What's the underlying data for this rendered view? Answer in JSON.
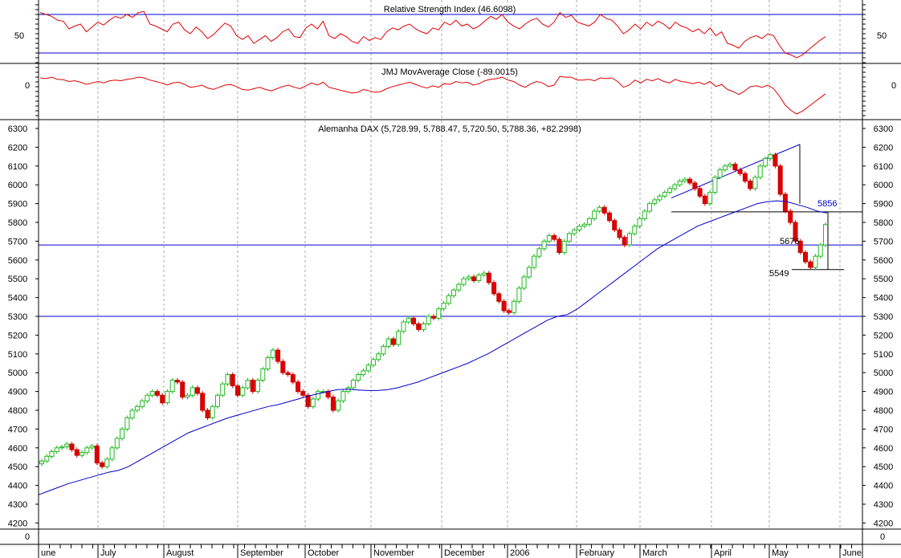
{
  "chart_data": [
    {
      "type": "line",
      "title": "Relative Strength Index (46.6098)",
      "y_ticks": [
        50
      ],
      "levels": [
        30,
        70
      ],
      "series": [
        {
          "color": "#e00000",
          "values": [
            72,
            70,
            68,
            64,
            63,
            55,
            58,
            60,
            52,
            57,
            62,
            59,
            64,
            68,
            66,
            70,
            67,
            72,
            73,
            60,
            58,
            55,
            52,
            60,
            62,
            54,
            50,
            57,
            52,
            45,
            49,
            55,
            61,
            58,
            48,
            44,
            48,
            40,
            44,
            48,
            42,
            46,
            52,
            55,
            47,
            46,
            56,
            60,
            55,
            63,
            48,
            45,
            50,
            47,
            42,
            40,
            47,
            43,
            46,
            44,
            52,
            56,
            54,
            58,
            60,
            55,
            52,
            50,
            56,
            54,
            62,
            59,
            64,
            58,
            60,
            55,
            58,
            63,
            68,
            65,
            70,
            62,
            58,
            55,
            60,
            64,
            66,
            60,
            57,
            62,
            72,
            67,
            69,
            62,
            60,
            58,
            62,
            70,
            66,
            64,
            58,
            50,
            54,
            60,
            55,
            62,
            58,
            63,
            60,
            55,
            62,
            58,
            56,
            52,
            55,
            50,
            56,
            48,
            52,
            40,
            38,
            35,
            42,
            46,
            48,
            45,
            50,
            48,
            38,
            30,
            28,
            25,
            28,
            33,
            38,
            43,
            47
          ]
        }
      ]
    },
    {
      "type": "line",
      "title": "JMJ MovAverage Close (-89.0015)",
      "y_ticks": [
        0
      ],
      "series": [
        {
          "color": "#e00000",
          "values": [
            20,
            18,
            22,
            16,
            15,
            10,
            12,
            8,
            2,
            6,
            10,
            6,
            12,
            14,
            12,
            16,
            18,
            22,
            20,
            14,
            10,
            6,
            0,
            6,
            8,
            2,
            -6,
            -4,
            0,
            -8,
            -12,
            -6,
            0,
            2,
            -4,
            -12,
            -14,
            -10,
            -6,
            -12,
            -16,
            -10,
            -4,
            0,
            -6,
            -10,
            -2,
            6,
            0,
            8,
            -6,
            -10,
            -14,
            -18,
            -22,
            -20,
            -12,
            -16,
            -20,
            -18,
            -10,
            -4,
            0,
            4,
            8,
            2,
            -4,
            -8,
            -2,
            -6,
            4,
            2,
            10,
            6,
            8,
            0,
            4,
            12,
            16,
            18,
            22,
            14,
            10,
            0,
            -6,
            4,
            10,
            6,
            -4,
            0,
            24,
            22,
            22,
            14,
            14,
            16,
            12,
            20,
            18,
            20,
            10,
            -6,
            0,
            14,
            6,
            16,
            12,
            18,
            10,
            6,
            16,
            10,
            8,
            4,
            8,
            2,
            10,
            -4,
            2,
            -12,
            -18,
            -26,
            -16,
            -4,
            -2,
            -6,
            0,
            -10,
            -30,
            -55,
            -70,
            -80,
            -72,
            -60,
            -48,
            -36,
            -24
          ]
        }
      ]
    },
    {
      "type": "line",
      "title": "Alemanha DAX (5,728.99, 5,788.47, 5,720.50, 5,788.36, +82.2998)",
      "ylim": [
        4130,
        6330
      ],
      "y_ticks": [
        4200,
        4300,
        4400,
        4500,
        4600,
        4700,
        4800,
        4900,
        5000,
        5100,
        5200,
        5300,
        5400,
        5500,
        5600,
        5700,
        5800,
        5900,
        6000,
        6100,
        6200,
        6300
      ],
      "x_ticks": [
        "une",
        "July",
        "August",
        "September",
        "October",
        "November",
        "December",
        "2006",
        "February",
        "March",
        "April",
        "May",
        "June"
      ],
      "close_series": [
        4530,
        4555,
        4580,
        4600,
        4605,
        4620,
        4590,
        4560,
        4575,
        4600,
        4610,
        4520,
        4500,
        4540,
        4600,
        4650,
        4700,
        4760,
        4800,
        4820,
        4850,
        4880,
        4900,
        4880,
        4840,
        4900,
        4960,
        4950,
        4870,
        4880,
        4920,
        4890,
        4800,
        4760,
        4820,
        4880,
        4940,
        4990,
        4930,
        4880,
        4920,
        4960,
        4900,
        4960,
        5020,
        5080,
        5120,
        5060,
        5000,
        4990,
        4950,
        4900,
        4880,
        4820,
        4860,
        4900,
        4900,
        4870,
        4800,
        4850,
        4900,
        4920,
        4960,
        4990,
        5010,
        5040,
        5070,
        5100,
        5140,
        5180,
        5150,
        5220,
        5270,
        5290,
        5260,
        5230,
        5260,
        5300,
        5290,
        5340,
        5370,
        5410,
        5440,
        5470,
        5500,
        5510,
        5490,
        5520,
        5530,
        5480,
        5420,
        5380,
        5330,
        5320,
        5380,
        5450,
        5510,
        5560,
        5620,
        5660,
        5700,
        5730,
        5710,
        5640,
        5700,
        5740,
        5760,
        5780,
        5790,
        5820,
        5860,
        5880,
        5850,
        5810,
        5760,
        5720,
        5680,
        5740,
        5780,
        5820,
        5860,
        5900,
        5920,
        5940,
        5960,
        5980,
        6000,
        6020,
        6030,
        6010,
        5980,
        5940,
        5900,
        5960,
        6040,
        6080,
        6100,
        6110,
        6080,
        6060,
        6020,
        5980,
        6040,
        6100,
        6140,
        6160,
        6100,
        5950,
        5860,
        5800,
        5700,
        5640,
        5590,
        5560,
        5620,
        5680,
        5788
      ],
      "moving_average": [
        4350,
        4370,
        4390,
        4410,
        4425,
        4440,
        4455,
        4470,
        4480,
        4500,
        4530,
        4560,
        4590,
        4620,
        4650,
        4680,
        4700,
        4720,
        4740,
        4760,
        4775,
        4790,
        4805,
        4820,
        4830,
        4845,
        4860,
        4875,
        4888,
        4900,
        4910,
        4912,
        4908,
        4905,
        4905,
        4910,
        4920,
        4935,
        4950,
        4970,
        4990,
        5010,
        5030,
        5050,
        5075,
        5100,
        5130,
        5160,
        5190,
        5220,
        5250,
        5280,
        5300,
        5310,
        5340,
        5380,
        5420,
        5460,
        5500,
        5540,
        5580,
        5620,
        5660,
        5690,
        5720,
        5750,
        5780,
        5800,
        5820,
        5840,
        5860,
        5880,
        5900,
        5910,
        5915,
        5910,
        5895,
        5880,
        5860,
        5850
      ],
      "ma_x": [
        0,
        5,
        10,
        15,
        20,
        25,
        30,
        35,
        40,
        45,
        50,
        55,
        60,
        65,
        70,
        75,
        80,
        85,
        90,
        95,
        100,
        105,
        110,
        115,
        120,
        125,
        130,
        135,
        140,
        145,
        150,
        155,
        160,
        165,
        170,
        175,
        180,
        185,
        190,
        195,
        200,
        205,
        210,
        215,
        220,
        225,
        230,
        235,
        240,
        245,
        250,
        255,
        260,
        265,
        270,
        275,
        280,
        285,
        290,
        295,
        300,
        305,
        310,
        315,
        320,
        325,
        330,
        335,
        340,
        345,
        350,
        355,
        360,
        365,
        370,
        375,
        380,
        385,
        390,
        395
      ],
      "horizontal_levels": [
        5300,
        5680,
        5856,
        5549
      ],
      "annotations": [
        {
          "text": "5856",
          "color": "#0000cc"
        },
        {
          "text": "5676",
          "color": "#000000"
        },
        {
          "text": "5549",
          "color": "#000000"
        }
      ]
    }
  ]
}
